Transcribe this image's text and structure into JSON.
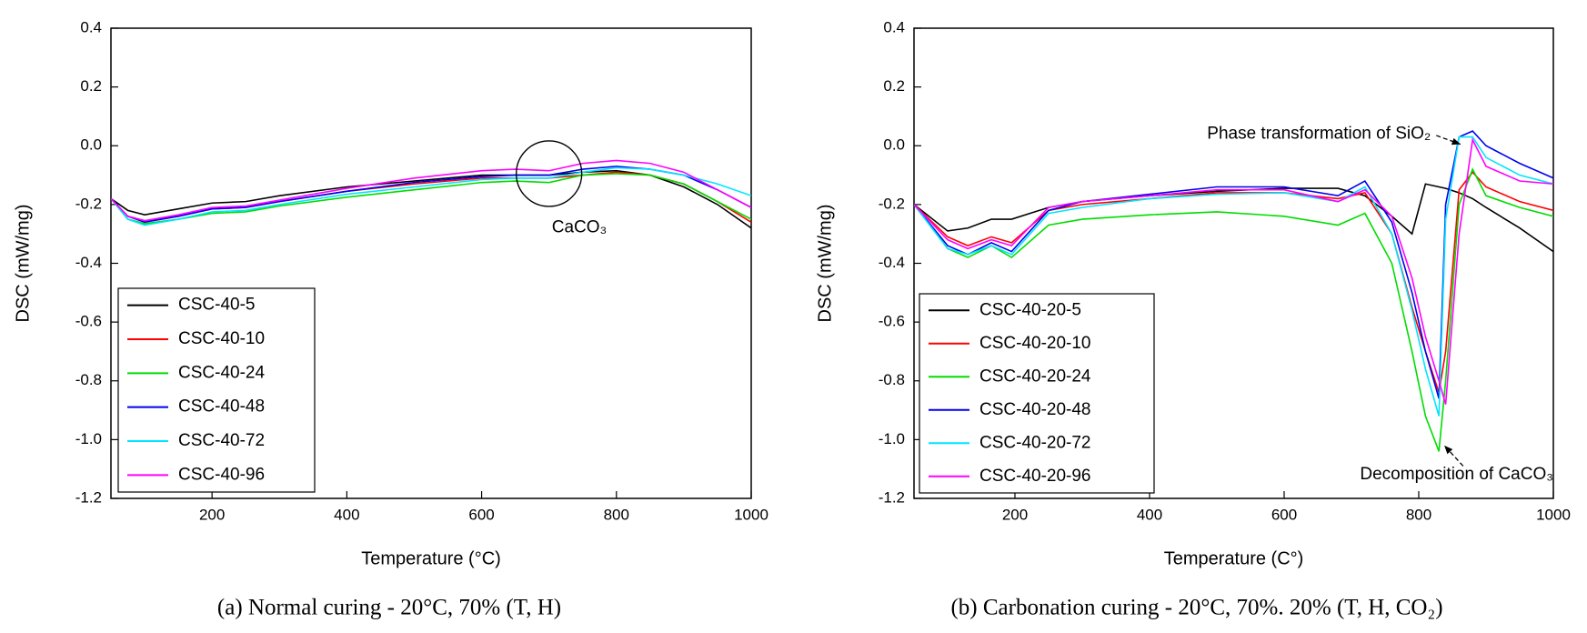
{
  "chart_data": [
    {
      "type": "line",
      "caption": "(a) Normal curing - 20°C, 70% (T, H)",
      "xlabel": "Temperature (°C)",
      "ylabel": "DSC (mW/mg)",
      "xlim": [
        50,
        1000
      ],
      "ylim": [
        -1.2,
        0.4
      ],
      "xticks": [
        200,
        400,
        600,
        800,
        1000
      ],
      "yticks": [
        0.4,
        0.2,
        {
          "value": 0,
          "label": "0.0"
        },
        -0.2,
        -0.4,
        -0.6,
        -0.8,
        {
          "value": -1,
          "label": "-1.0"
        },
        -1.2
      ],
      "legend": "lower left",
      "annotations": [
        "CaCO₃"
      ],
      "x": [
        50,
        75,
        100,
        150,
        200,
        250,
        300,
        400,
        500,
        600,
        650,
        700,
        750,
        800,
        850,
        900,
        950,
        1000
      ],
      "series": [
        {
          "name": "CSC-40-5",
          "color": "#000000",
          "values": [
            -0.18,
            -0.22,
            -0.235,
            -0.215,
            -0.195,
            -0.19,
            -0.17,
            -0.14,
            -0.12,
            -0.1,
            -0.1,
            -0.1,
            -0.09,
            -0.085,
            -0.1,
            -0.14,
            -0.2,
            -0.28
          ]
        },
        {
          "name": "CSC-40-10",
          "color": "#ff0000",
          "values": [
            -0.18,
            -0.24,
            -0.255,
            -0.24,
            -0.215,
            -0.21,
            -0.19,
            -0.155,
            -0.13,
            -0.11,
            -0.11,
            -0.11,
            -0.1,
            -0.09,
            -0.1,
            -0.13,
            -0.19,
            -0.26
          ]
        },
        {
          "name": "CSC-40-24",
          "color": "#00dd00",
          "values": [
            -0.18,
            -0.25,
            -0.265,
            -0.25,
            -0.23,
            -0.225,
            -0.205,
            -0.175,
            -0.15,
            -0.125,
            -0.12,
            -0.125,
            -0.1,
            -0.095,
            -0.1,
            -0.13,
            -0.19,
            -0.25
          ]
        },
        {
          "name": "CSC-40-48",
          "color": "#0000ee",
          "values": [
            -0.18,
            -0.24,
            -0.26,
            -0.24,
            -0.215,
            -0.21,
            -0.19,
            -0.155,
            -0.125,
            -0.105,
            -0.1,
            -0.1,
            -0.08,
            -0.07,
            -0.08,
            -0.1,
            -0.15,
            -0.21
          ]
        },
        {
          "name": "CSC-40-72",
          "color": "#00e5ff",
          "values": [
            -0.18,
            -0.25,
            -0.27,
            -0.25,
            -0.225,
            -0.22,
            -0.2,
            -0.165,
            -0.14,
            -0.115,
            -0.11,
            -0.11,
            -0.09,
            -0.075,
            -0.08,
            -0.1,
            -0.13,
            -0.17
          ]
        },
        {
          "name": "CSC-40-96",
          "color": "#ff00ff",
          "values": [
            -0.18,
            -0.24,
            -0.255,
            -0.235,
            -0.21,
            -0.205,
            -0.185,
            -0.145,
            -0.11,
            -0.085,
            -0.08,
            -0.085,
            -0.06,
            -0.05,
            -0.06,
            -0.09,
            -0.15,
            -0.21
          ]
        }
      ]
    },
    {
      "type": "line",
      "caption": "(b) Carbonation curing - 20°C, 70%. 20% (T, H, CO₂)",
      "xlabel": "Temperature (C°)",
      "ylabel": "DSC (mW/mg)",
      "xlim": [
        50,
        1000
      ],
      "ylim": [
        -1.2,
        0.4
      ],
      "xticks": [
        200,
        400,
        600,
        800,
        1000
      ],
      "yticks": [
        0.4,
        0.2,
        {
          "value": 0,
          "label": "0.0"
        },
        -0.2,
        -0.4,
        -0.6,
        -0.8,
        {
          "value": -1,
          "label": "-1.0"
        },
        -1.2
      ],
      "legend": "lower left",
      "annotations": [
        "Phase transformation of SiO₂",
        "Decomposition of CaCO₃"
      ],
      "x": [
        50,
        100,
        130,
        165,
        195,
        250,
        300,
        400,
        500,
        600,
        680,
        720,
        760,
        790,
        810,
        830,
        840,
        860,
        880,
        900,
        950,
        1000
      ],
      "series": [
        {
          "name": "CSC-40-20-5",
          "color": "#000000",
          "values": [
            -0.2,
            -0.29,
            -0.28,
            -0.25,
            -0.25,
            -0.21,
            -0.19,
            -0.17,
            -0.155,
            -0.145,
            -0.145,
            -0.17,
            -0.24,
            -0.3,
            -0.13,
            -0.14,
            -0.145,
            -0.16,
            -0.18,
            -0.21,
            -0.28,
            -0.36
          ]
        },
        {
          "name": "CSC-40-20-10",
          "color": "#ff0000",
          "values": [
            -0.2,
            -0.31,
            -0.34,
            -0.31,
            -0.33,
            -0.22,
            -0.2,
            -0.18,
            -0.16,
            -0.16,
            -0.18,
            -0.16,
            -0.3,
            -0.55,
            -0.7,
            -0.84,
            -0.7,
            -0.15,
            -0.09,
            -0.14,
            -0.19,
            -0.22
          ]
        },
        {
          "name": "CSC-40-20-24",
          "color": "#00dd00",
          "values": [
            -0.2,
            -0.35,
            -0.38,
            -0.34,
            -0.38,
            -0.27,
            -0.25,
            -0.235,
            -0.225,
            -0.24,
            -0.27,
            -0.23,
            -0.4,
            -0.7,
            -0.92,
            -1.04,
            -0.8,
            -0.2,
            -0.08,
            -0.17,
            -0.21,
            -0.24
          ]
        },
        {
          "name": "CSC-40-20-48",
          "color": "#0000ee",
          "values": [
            -0.2,
            -0.34,
            -0.37,
            -0.33,
            -0.36,
            -0.22,
            -0.19,
            -0.165,
            -0.14,
            -0.14,
            -0.17,
            -0.12,
            -0.26,
            -0.5,
            -0.7,
            -0.86,
            -0.2,
            0.03,
            0.05,
            0,
            -0.06,
            -0.11
          ]
        },
        {
          "name": "CSC-40-20-72",
          "color": "#00e5ff",
          "values": [
            -0.2,
            -0.35,
            -0.37,
            -0.34,
            -0.37,
            -0.23,
            -0.21,
            -0.18,
            -0.165,
            -0.16,
            -0.19,
            -0.14,
            -0.3,
            -0.56,
            -0.76,
            -0.92,
            -0.25,
            0.03,
            0.03,
            -0.04,
            -0.1,
            -0.13
          ]
        },
        {
          "name": "CSC-40-20-96",
          "color": "#ff00ff",
          "values": [
            -0.2,
            -0.32,
            -0.35,
            -0.32,
            -0.34,
            -0.21,
            -0.19,
            -0.17,
            -0.15,
            -0.15,
            -0.19,
            -0.15,
            -0.24,
            -0.45,
            -0.65,
            -0.8,
            -0.88,
            -0.3,
            0.02,
            -0.07,
            -0.12,
            -0.13
          ]
        }
      ]
    }
  ]
}
